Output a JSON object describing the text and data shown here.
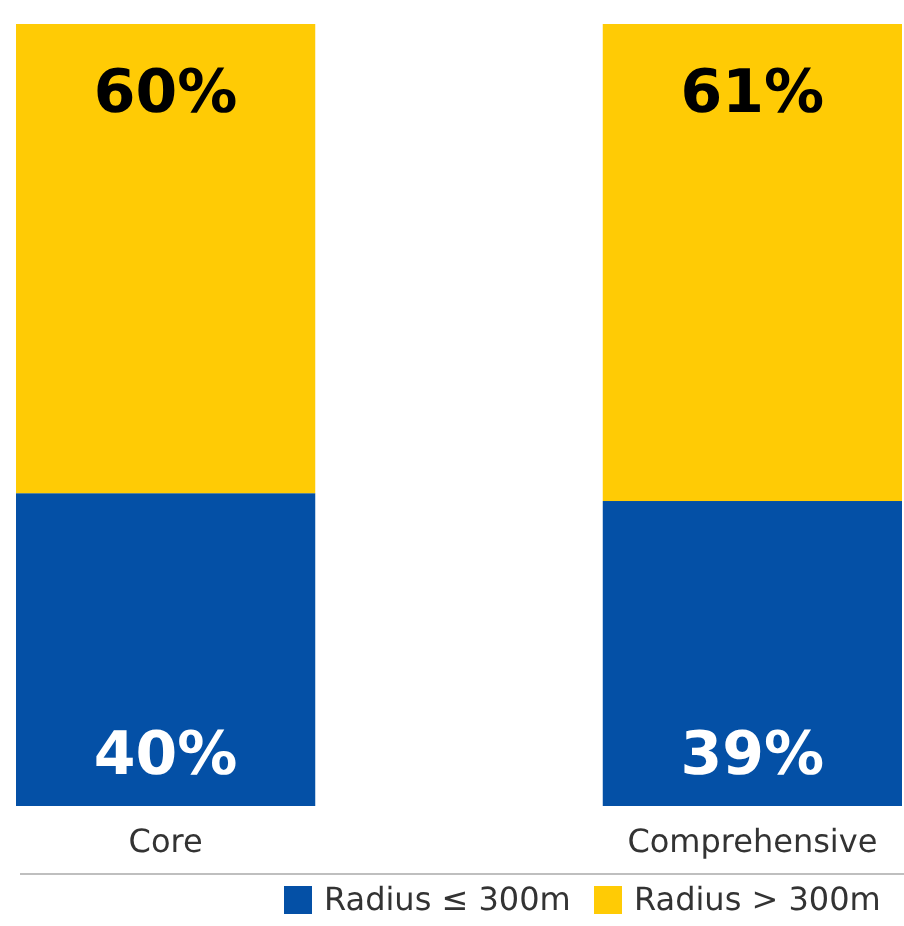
{
  "chart_data": {
    "type": "bar",
    "stacked": true,
    "categories": [
      "Core",
      "Comprehensive"
    ],
    "series": [
      {
        "name": "Radius ≤ 300m",
        "color": "#0450a6",
        "values": [
          40,
          39
        ],
        "value_labels": [
          "40%",
          "39%"
        ]
      },
      {
        "name": "Radius > 300m",
        "color": "#ffcb05",
        "values": [
          60,
          61
        ],
        "value_labels": [
          "60%",
          "61%"
        ]
      }
    ],
    "legend": "bottom"
  }
}
